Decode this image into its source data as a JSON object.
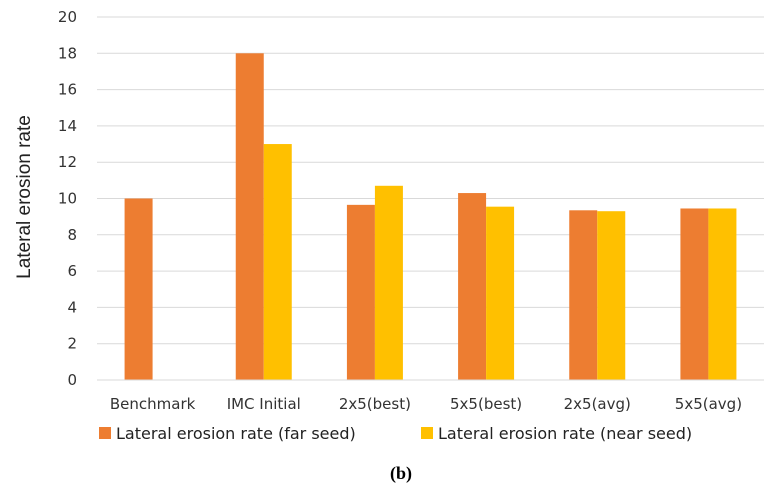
{
  "chart_data": {
    "type": "bar",
    "categories": [
      "Benchmark",
      "IMC Initial",
      "2x5(best)",
      "5x5(best)",
      "2x5(avg)",
      "5x5(avg)"
    ],
    "series": [
      {
        "name": "Lateral erosion rate (far seed)",
        "values": [
          10.0,
          18.0,
          9.65,
          10.3,
          9.35,
          9.45
        ],
        "color": "#ED7D31"
      },
      {
        "name": "Lateral erosion rate (near seed)",
        "values": [
          null,
          13.0,
          10.7,
          9.55,
          9.3,
          9.45
        ],
        "color": "#FFC000"
      }
    ],
    "ylabel": "Lateral erosion rate",
    "ylim": [
      0,
      20
    ],
    "yticks": [
      "0",
      "2",
      "4",
      "6",
      "8",
      "10",
      "12",
      "14",
      "16",
      "18",
      "20"
    ],
    "grid": true,
    "legend_position": "bottom",
    "caption": "(b)"
  }
}
